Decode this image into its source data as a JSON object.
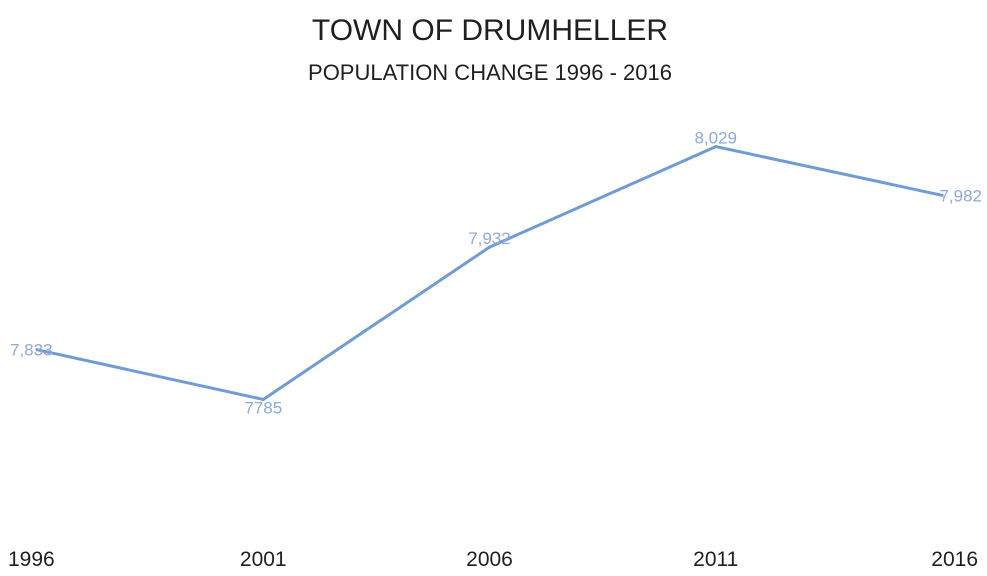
{
  "chart_data": {
    "type": "line",
    "title": "TOWN OF DRUMHELLER",
    "subtitle": "POPULATION CHANGE 1996 - 2016",
    "xlabel": "",
    "ylabel": "",
    "categories": [
      "1996",
      "2001",
      "2006",
      "2011",
      "2016"
    ],
    "series": [
      {
        "values": [
          7833,
          7785,
          7932,
          8029,
          7982
        ],
        "labels": [
          "7,833",
          "7785",
          "7,932",
          "8,029",
          "7,982"
        ]
      }
    ],
    "ylim": [
      7660,
      8100
    ],
    "grid": false,
    "legend": "none",
    "line_color": "#6f9bd6",
    "label_color": "#8fa9d9",
    "text_color": "#1f1f1f"
  }
}
